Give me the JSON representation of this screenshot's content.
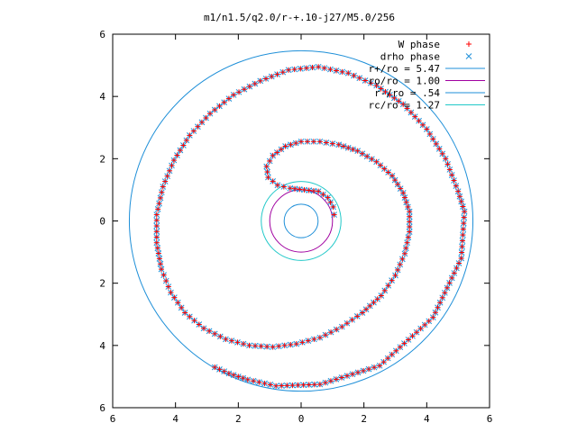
{
  "chart_data": {
    "type": "scatter",
    "title": "m1/n1.5/q2.0/r-+.10-j27/M5.0/256",
    "xlim": [
      -6,
      6
    ],
    "ylim": [
      -6,
      6
    ],
    "x_ticks": [
      "6",
      "4",
      "2",
      "0",
      "2",
      "4",
      "6"
    ],
    "y_ticks": [
      "6",
      "4",
      "2",
      "0",
      "2",
      "4",
      "6"
    ],
    "x_tick_values": [
      -6,
      -4,
      -2,
      0,
      2,
      4,
      6
    ],
    "y_tick_values": [
      6,
      4,
      2,
      0,
      -2,
      -4,
      -6
    ],
    "grid": false,
    "legend_position": "top-right",
    "series": [
      {
        "name": "W phase",
        "kind": "spiral-points",
        "marker": "plus",
        "color": "#ff0000"
      },
      {
        "name": "drho phase",
        "kind": "spiral-points",
        "marker": "cross",
        "color": "#1e8fd8"
      }
    ],
    "spiral": {
      "description_points": [
        [
          1.05,
          0.2
        ],
        [
          1.02,
          0.45
        ],
        [
          0.85,
          0.75
        ],
        [
          0.55,
          0.95
        ],
        [
          0.1,
          1.0
        ],
        [
          -0.35,
          1.05
        ],
        [
          -0.75,
          1.15
        ],
        [
          -1.05,
          1.4
        ],
        [
          -1.1,
          1.75
        ],
        [
          -0.9,
          2.1
        ],
        [
          -0.5,
          2.4
        ],
        [
          0.0,
          2.55
        ],
        [
          0.6,
          2.55
        ],
        [
          1.2,
          2.45
        ],
        [
          1.8,
          2.25
        ],
        [
          2.4,
          1.9
        ],
        [
          2.9,
          1.45
        ],
        [
          3.25,
          0.9
        ],
        [
          3.45,
          0.3
        ],
        [
          3.45,
          -0.35
        ],
        [
          3.3,
          -1.05
        ],
        [
          3.0,
          -1.75
        ],
        [
          2.55,
          -2.4
        ],
        [
          1.95,
          -2.95
        ],
        [
          1.3,
          -3.4
        ],
        [
          0.6,
          -3.75
        ],
        [
          -0.15,
          -3.95
        ],
        [
          -0.9,
          -4.05
        ],
        [
          -1.65,
          -4.0
        ],
        [
          -2.4,
          -3.8
        ],
        [
          -3.1,
          -3.45
        ],
        [
          -3.7,
          -2.95
        ],
        [
          -4.15,
          -2.3
        ],
        [
          -4.45,
          -1.55
        ],
        [
          -4.6,
          -0.7
        ],
        [
          -4.6,
          0.2
        ],
        [
          -4.4,
          1.1
        ],
        [
          -4.05,
          1.95
        ],
        [
          -3.55,
          2.75
        ],
        [
          -2.9,
          3.45
        ],
        [
          -2.15,
          4.05
        ],
        [
          -1.3,
          4.5
        ],
        [
          -0.4,
          4.85
        ],
        [
          0.55,
          4.95
        ],
        [
          1.5,
          4.75
        ],
        [
          2.4,
          4.35
        ],
        [
          3.25,
          3.75
        ],
        [
          4.0,
          2.95
        ],
        [
          4.6,
          2.0
        ],
        [
          5.0,
          0.95
        ],
        [
          5.2,
          0.3
        ],
        [
          5.1,
          -1.2
        ],
        [
          4.2,
          -3.1
        ],
        [
          2.5,
          -4.65
        ],
        [
          0.6,
          -5.25
        ],
        [
          -0.8,
          -5.3
        ],
        [
          -1.7,
          -5.1
        ],
        [
          -2.3,
          -4.9
        ],
        [
          -2.75,
          -4.7
        ]
      ],
      "points_per_series": 260
    },
    "reference_circles": [
      {
        "label": "r+/ro = 5.47",
        "radius": 5.47,
        "color": "#1e8fd8"
      },
      {
        "label": "ro/ro = 1.00",
        "radius": 1.0,
        "color": "#a000a0"
      },
      {
        "label": "r-/ro = .54",
        "radius": 0.54,
        "color": "#1e8fd8"
      },
      {
        "label": "rc/ro = 1.27",
        "radius": 1.27,
        "color": "#20c8c8"
      }
    ]
  }
}
